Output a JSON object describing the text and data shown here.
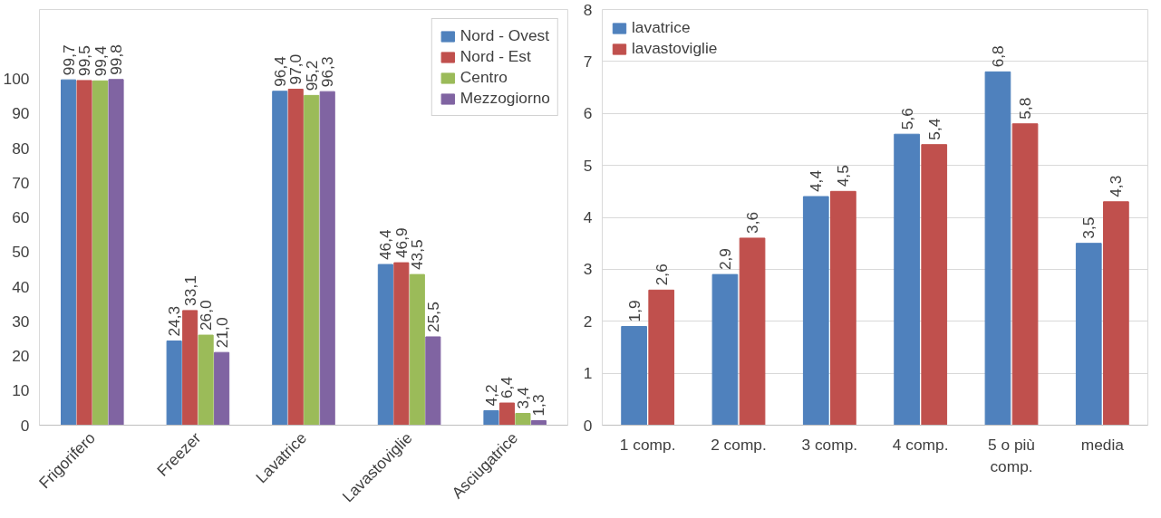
{
  "chart_data": [
    {
      "type": "bar",
      "categories": [
        "Frigorifero",
        "Freezer",
        "Lavatrice",
        "Lavastoviglie",
        "Asciugatrice"
      ],
      "ylim": [
        0,
        120
      ],
      "yticks": [
        0,
        10,
        20,
        30,
        40,
        50,
        60,
        70,
        80,
        90,
        100
      ],
      "grid": false,
      "legend": "top right",
      "series": [
        {
          "name": "Nord - Ovest",
          "color": "#4f81bd",
          "values": [
            99.7,
            24.3,
            96.4,
            46.4,
            4.2
          ],
          "value_labels": [
            "99,7",
            "24,3",
            "96,4",
            "46,4",
            "4,2"
          ]
        },
        {
          "name": "Nord - Est",
          "color": "#c0504d",
          "values": [
            99.5,
            33.1,
            97.0,
            46.9,
            6.4
          ],
          "value_labels": [
            "99,5",
            "33,1",
            "97,0",
            "46,9",
            "6,4"
          ]
        },
        {
          "name": "Centro",
          "color": "#9bbb59",
          "values": [
            99.4,
            26.0,
            95.2,
            43.5,
            3.4
          ],
          "value_labels": [
            "99,4",
            "26,0",
            "95,2",
            "43,5",
            "3,4"
          ]
        },
        {
          "name": "Mezzogiorno",
          "color": "#8064a2",
          "values": [
            99.8,
            21.0,
            96.3,
            25.5,
            1.3
          ],
          "value_labels": [
            "99,8",
            "21,0",
            "96,3",
            "25,5",
            "1,3"
          ]
        }
      ]
    },
    {
      "type": "bar",
      "categories": [
        "1 comp.",
        "2 comp.",
        "3 comp.",
        "4 comp.",
        "5 o più comp.",
        "media"
      ],
      "ylim": [
        0,
        8
      ],
      "yticks": [
        0,
        1,
        2,
        3,
        4,
        5,
        6,
        7,
        8
      ],
      "grid": "y",
      "legend": "top left",
      "series": [
        {
          "name": "lavatrice",
          "color": "#4f81bd",
          "values": [
            1.9,
            2.9,
            4.4,
            5.6,
            6.8,
            3.5
          ],
          "value_labels": [
            "1,9",
            "2,9",
            "4,4",
            "5,6",
            "6,8",
            "3,5"
          ]
        },
        {
          "name": "lavastoviglie",
          "color": "#c0504d",
          "values": [
            2.6,
            3.6,
            4.5,
            5.4,
            5.8,
            4.3
          ],
          "value_labels": [
            "2,6",
            "3,6",
            "4,5",
            "5,4",
            "5,8",
            "4,3"
          ]
        }
      ]
    }
  ]
}
